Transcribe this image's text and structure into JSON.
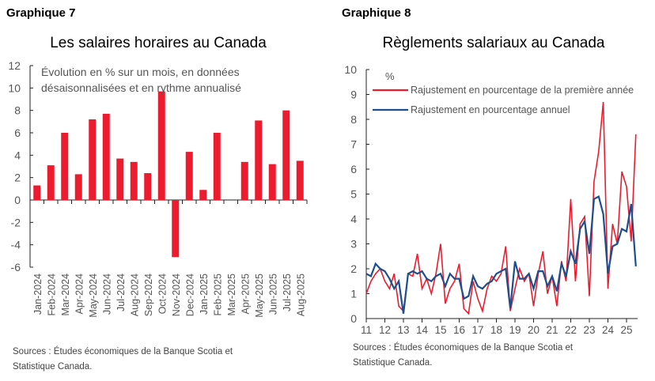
{
  "left": {
    "label": "Graphique 7",
    "sources": [
      "Sources : Études économiques de la Banque Scotia et",
      "Statistique Canada."
    ]
  },
  "right": {
    "label": "Graphique 8",
    "sources": [
      "Sources : Études économiques de la Banque Scotia et",
      "Statistique Canada."
    ]
  },
  "chart_data": [
    {
      "type": "bar",
      "title": "Les salaires horaires au Canada",
      "annotation": [
        "Évolution en % sur un mois, en données",
        "désaisonnalisées et en rythme annualisé"
      ],
      "categories": [
        "Jan-2024",
        "Feb-2024",
        "Mar-2024",
        "Apr-2024",
        "May-2024",
        "Jun-2024",
        "Jul-2024",
        "Aug-2024",
        "Sep-2024",
        "Oct-2024",
        "Nov-2024",
        "Dec-2024",
        "Jan-2025",
        "Feb-2025",
        "Mar-2025",
        "Apr-2025",
        "May-2025",
        "Jun-2025",
        "Jul-2025",
        "Aug-2025"
      ],
      "values": [
        1.3,
        3.1,
        6.0,
        2.3,
        7.2,
        7.7,
        3.7,
        3.4,
        2.4,
        9.7,
        -5.1,
        4.3,
        0.9,
        6.0,
        0.0,
        3.4,
        7.1,
        3.2,
        8.0,
        3.5
      ],
      "ylim": [
        -6,
        12
      ],
      "yticks": [
        -6,
        -4,
        -2,
        0,
        2,
        4,
        6,
        8,
        10,
        12
      ],
      "color": "#ec1c2e",
      "grid": false
    },
    {
      "type": "line",
      "title": "Règlements salariaux au Canada",
      "ylabel": "%",
      "ylim": [
        0,
        10
      ],
      "yticks": [
        0,
        1,
        2,
        3,
        4,
        5,
        6,
        7,
        8,
        9,
        10
      ],
      "xlim": [
        2011,
        2025.6
      ],
      "xticks": [
        2011,
        2012,
        2013,
        2014,
        2015,
        2016,
        2017,
        2018,
        2019,
        2020,
        2021,
        2022,
        2023,
        2024,
        2025
      ],
      "xticklabels": [
        "11",
        "12",
        "13",
        "14",
        "15",
        "16",
        "17",
        "18",
        "19",
        "20",
        "21",
        "22",
        "23",
        "24",
        "25"
      ],
      "legend": "top-left",
      "grid": false,
      "x": [
        2011,
        2011.25,
        2011.5,
        2011.75,
        2012,
        2012.25,
        2012.5,
        2012.75,
        2013,
        2013.25,
        2013.5,
        2013.75,
        2014,
        2014.25,
        2014.5,
        2014.75,
        2015,
        2015.25,
        2015.5,
        2015.75,
        2016,
        2016.25,
        2016.5,
        2016.75,
        2017,
        2017.25,
        2017.5,
        2017.75,
        2018,
        2018.25,
        2018.5,
        2018.75,
        2019,
        2019.25,
        2019.5,
        2019.75,
        2020,
        2020.25,
        2020.5,
        2020.75,
        2021,
        2021.25,
        2021.5,
        2021.75,
        2022,
        2022.25,
        2022.5,
        2022.75,
        2023,
        2023.25,
        2023.5,
        2023.75,
        2024,
        2024.25,
        2024.5,
        2024.75,
        2025,
        2025.25,
        2025.5
      ],
      "series": [
        {
          "name": "Rajustement en pourcentage de la première année",
          "color": "#ec1c2e",
          "values": [
            1.0,
            1.5,
            1.8,
            2.0,
            1.5,
            1.2,
            1.8,
            0.5,
            0.3,
            1.8,
            1.7,
            2.6,
            1.2,
            1.6,
            1.0,
            1.8,
            3.0,
            0.6,
            1.2,
            1.5,
            2.2,
            0.4,
            0.2,
            1.5,
            0.8,
            0.3,
            1.2,
            1.7,
            1.5,
            1.8,
            2.9,
            0.3,
            1.2,
            2.0,
            1.5,
            1.8,
            0.5,
            1.8,
            2.7,
            1.0,
            1.7,
            0.5,
            2.3,
            1.5,
            4.8,
            1.5,
            3.8,
            4.1,
            0.9,
            5.5,
            6.7,
            8.7,
            1.2,
            3.8,
            3.0,
            5.9,
            5.3,
            3.1,
            7.4
          ]
        },
        {
          "name": "Rajustement en pourcentage annuel",
          "color": "#1f4e8c",
          "values": [
            1.8,
            1.7,
            2.2,
            2.0,
            1.9,
            1.6,
            1.2,
            1.5,
            0.2,
            1.8,
            1.9,
            1.8,
            1.9,
            1.6,
            1.5,
            1.7,
            1.8,
            1.3,
            1.8,
            1.6,
            1.6,
            0.8,
            0.9,
            1.7,
            1.3,
            1.2,
            1.4,
            1.5,
            1.8,
            1.9,
            2.0,
            0.4,
            2.3,
            1.6,
            1.6,
            1.8,
            1.2,
            1.9,
            1.9,
            1.3,
            1.7,
            1.1,
            2.2,
            1.7,
            2.7,
            2.2,
            3.6,
            3.9,
            2.6,
            4.8,
            4.9,
            4.2,
            1.8,
            2.9,
            3.0,
            3.6,
            3.5,
            4.6,
            2.1
          ]
        }
      ]
    }
  ]
}
